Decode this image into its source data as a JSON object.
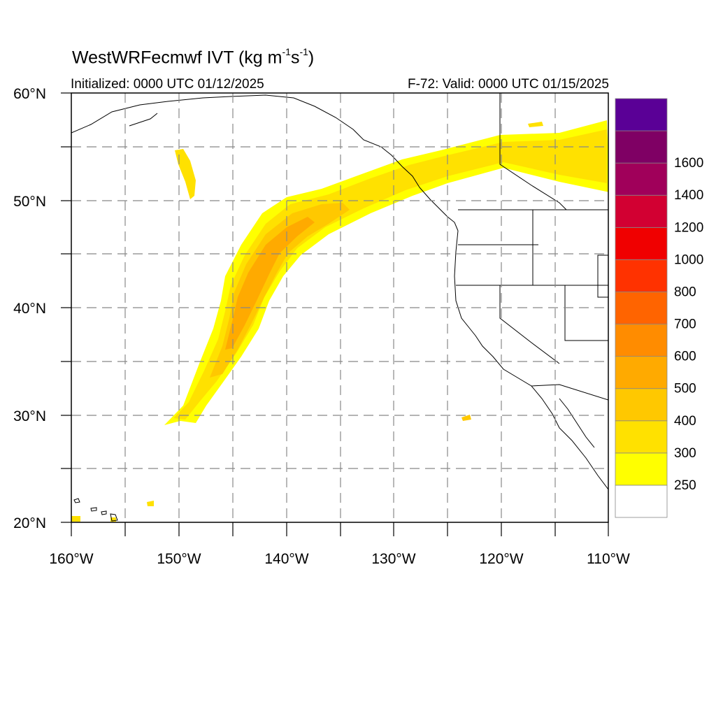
{
  "title": {
    "main": "WestWRFecmwf IVT (kg m",
    "exp1": "-1",
    "mid": "s",
    "exp2": "-1",
    "close": ")"
  },
  "initialized": "Initialized: 0000 UTC 01/12/2025",
  "valid": "F-72: Valid: 0000 UTC 01/15/2025",
  "lat_labels": [
    "60°N",
    "50°N",
    "40°N",
    "30°N",
    "20°N"
  ],
  "lon_labels": [
    "160°W",
    "150°W",
    "140°W",
    "130°W",
    "120°W",
    "110°W"
  ],
  "colorbar": {
    "units_hint": "IVT",
    "colors": [
      "#ffffff",
      "#ffff00",
      "#ffe100",
      "#ffc800",
      "#ffaa00",
      "#ff8c00",
      "#ff6400",
      "#ff3200",
      "#f00000",
      "#d20032",
      "#a0005a",
      "#7f0064",
      "#5a0096"
    ],
    "labels": [
      "250",
      "300",
      "400",
      "500",
      "600",
      "700",
      "800",
      "1000",
      "1200",
      "1400",
      "1600"
    ]
  },
  "colors": {
    "ivt_250": "#ffff00",
    "ivt_300": "#ffe100",
    "ivt_400": "#ffc800",
    "ivt_500": "#ffaa00",
    "ivt_600": "#ff8c00",
    "grid": "#888888"
  }
}
